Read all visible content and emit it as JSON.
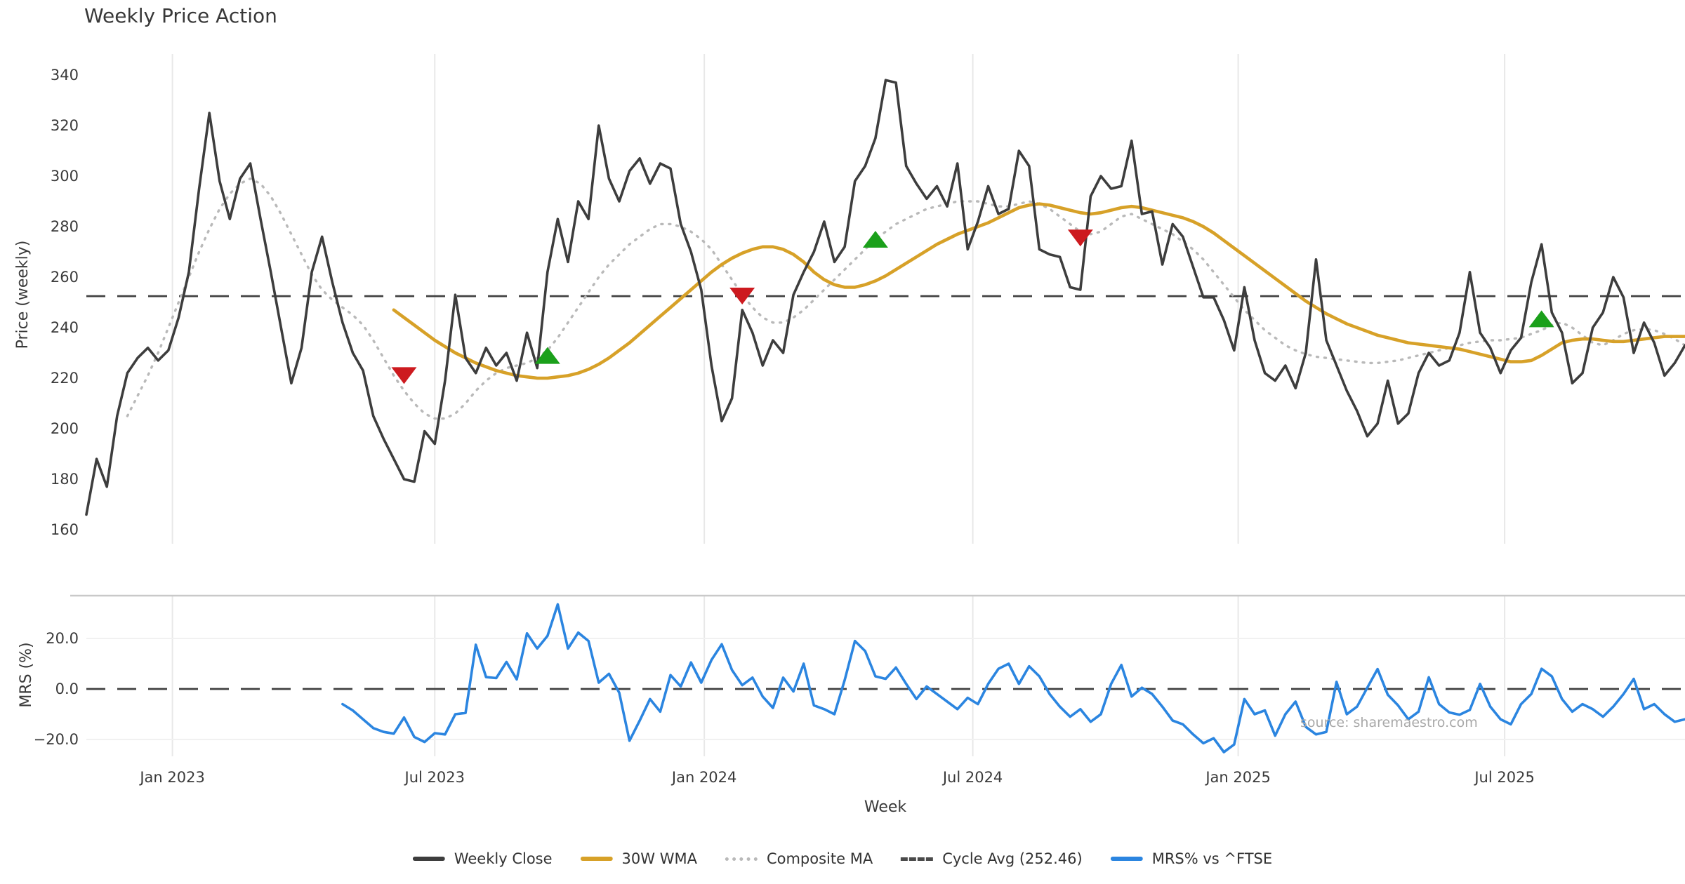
{
  "title": "Weekly Price Action",
  "watermark": "source: sharemaestro.com",
  "x_axis": {
    "label": "Week",
    "ticks": [
      {
        "week": 8.4,
        "label": "Jan 2023"
      },
      {
        "week": 34.0,
        "label": "Jul 2023"
      },
      {
        "week": 60.3,
        "label": "Jan 2024"
      },
      {
        "week": 86.5,
        "label": "Jul 2024"
      },
      {
        "week": 112.4,
        "label": "Jan 2025"
      },
      {
        "week": 138.4,
        "label": "Jul 2025"
      }
    ]
  },
  "legend": {
    "items": [
      {
        "label": "Weekly Close",
        "color": "#3d3d3d",
        "style": "solid"
      },
      {
        "label": "30W WMA",
        "color": "#d7a128",
        "style": "solid"
      },
      {
        "label": "Composite MA",
        "color": "#b9b9b9",
        "style": "dotted"
      },
      {
        "label": "Cycle Avg (252.46)",
        "color": "#4a4a4a",
        "style": "dashed"
      },
      {
        "label": "MRS% vs ^FTSE",
        "color": "#2b85e0",
        "style": "solid"
      }
    ]
  },
  "chart_data": [
    {
      "type": "line",
      "title": "Weekly Price Action",
      "ylabel": "Price (weekly)",
      "ylim": [
        152,
        349
      ],
      "grid": "vertical-only",
      "y_ticks": [
        340,
        320,
        300,
        280,
        260,
        240,
        220,
        200,
        180,
        160
      ],
      "cycle_avg": 252.46,
      "series": [
        {
          "name": "Weekly Close",
          "color": "#3d3d3d",
          "style": "solid",
          "width": 3.6,
          "start_week": 0,
          "values": [
            166,
            188,
            177,
            205,
            222,
            228,
            232,
            227,
            231,
            244,
            262,
            295,
            325,
            298,
            283,
            299,
            305,
            283,
            262,
            240,
            218,
            232,
            262,
            276,
            258,
            242,
            230,
            223,
            205,
            196,
            188,
            180,
            179,
            199,
            194,
            219,
            253,
            228,
            222,
            232,
            225,
            230,
            219,
            238,
            224,
            262,
            283,
            266,
            290,
            283,
            320,
            299,
            290,
            302,
            307,
            297,
            305,
            303,
            281,
            270,
            255,
            225,
            203,
            212,
            247,
            238,
            225,
            235,
            230,
            253,
            262,
            270,
            282,
            266,
            272,
            298,
            304,
            315,
            338,
            337,
            304,
            297,
            291,
            296,
            288,
            305,
            271,
            282,
            296,
            285,
            287,
            310,
            304,
            271,
            269,
            268,
            256,
            255,
            292,
            300,
            295,
            296,
            314,
            285,
            286,
            265,
            281,
            276,
            264,
            252,
            252,
            243,
            231,
            256,
            235,
            222,
            219,
            225,
            216,
            230,
            267,
            235,
            225,
            215,
            207,
            197,
            202,
            219,
            202,
            206,
            222,
            230,
            225,
            227,
            238,
            262,
            238,
            232,
            222,
            231,
            236,
            258,
            273,
            246,
            238,
            218,
            222,
            240,
            246,
            260,
            252,
            230,
            242,
            234,
            221,
            226,
            233
          ]
        },
        {
          "name": "30W WMA",
          "color": "#d7a128",
          "style": "solid",
          "width": 4.6,
          "start_week": 30,
          "values": [
            247,
            244,
            241,
            238,
            235,
            232.5,
            230,
            228,
            226,
            224.5,
            223,
            222,
            221,
            220.5,
            220,
            220,
            220.5,
            221,
            222,
            223.5,
            225.5,
            228,
            231,
            234,
            237.5,
            241,
            244.5,
            248,
            251.5,
            255,
            258.5,
            262,
            265,
            267.5,
            269.5,
            271,
            272,
            272,
            271,
            269,
            266,
            262,
            259,
            257,
            256,
            256,
            257,
            258.5,
            260.5,
            263,
            265.5,
            268,
            270.5,
            273,
            275,
            277,
            278.5,
            280,
            281.5,
            283.5,
            285.5,
            287.5,
            288.5,
            289,
            288.5,
            287.5,
            286.5,
            285.5,
            285,
            285.5,
            286.5,
            287.5,
            288,
            287.5,
            286.5,
            285.5,
            284.5,
            283.5,
            282,
            280,
            277.5,
            274.5,
            271.5,
            268.5,
            265.5,
            262.5,
            259.5,
            256.5,
            253.5,
            250.5,
            248,
            245.5,
            243.5,
            241.5,
            240,
            238.5,
            237,
            236,
            235,
            234,
            233.5,
            233,
            232.5,
            232,
            231.5,
            230.5,
            229.5,
            228.5,
            227.5,
            226.5,
            226.5,
            227,
            229,
            231.5,
            234,
            235,
            235.5,
            235.5,
            235,
            234.5,
            234.5,
            235,
            235.5,
            236,
            236.5,
            236.5,
            236.5
          ]
        },
        {
          "name": "Composite MA",
          "color": "#b9b9b9",
          "style": "dotted",
          "width": 3.4,
          "start_week": 4,
          "values": [
            205,
            213,
            221,
            230,
            240,
            250,
            260,
            270,
            279,
            287,
            293,
            297,
            299,
            297,
            292,
            285,
            277,
            269,
            261,
            255,
            251,
            248,
            245,
            241,
            235,
            228,
            221,
            215,
            210,
            206,
            204,
            204,
            206,
            210,
            215,
            219,
            222,
            224,
            225,
            226,
            228,
            231,
            236,
            242,
            248,
            254,
            260,
            265,
            269,
            273,
            276,
            279,
            281,
            281,
            280,
            278,
            275,
            271,
            265,
            259,
            253,
            248,
            244,
            242,
            242,
            244,
            247,
            251,
            255,
            259,
            263,
            267,
            271,
            275,
            278,
            281,
            283,
            285,
            287,
            288,
            289,
            290,
            290,
            290,
            289,
            288,
            288,
            289,
            290,
            289,
            287,
            284,
            281,
            278,
            277,
            278,
            281,
            284,
            285,
            283,
            281,
            279,
            277,
            274,
            271,
            267,
            262,
            257,
            252,
            247,
            243,
            239,
            236,
            233,
            231,
            229.5,
            228.5,
            228,
            227.5,
            227,
            226.5,
            226,
            226,
            226.5,
            227,
            228,
            229,
            230,
            231,
            232,
            233,
            234,
            234.5,
            235,
            235,
            235.5,
            236,
            237.5,
            239,
            241,
            242,
            240,
            237,
            234,
            233,
            235,
            237.5,
            239,
            239.5,
            239,
            237.5,
            235.5,
            233
          ]
        },
        {
          "name": "Cycle Avg (252.46)",
          "color": "#404040",
          "style": "dashed",
          "width": 2.8,
          "value": 252.46
        }
      ],
      "markers": [
        {
          "week": 31,
          "value": 221,
          "type": "sell"
        },
        {
          "week": 45,
          "value": 229,
          "type": "buy"
        },
        {
          "week": 64,
          "value": 252.5,
          "type": "sell"
        },
        {
          "week": 77,
          "value": 275,
          "type": "buy"
        },
        {
          "week": 97,
          "value": 275.5,
          "type": "sell"
        },
        {
          "week": 142,
          "value": 243.5,
          "type": "buy"
        }
      ],
      "marker_colors": {
        "buy": "#1ba01b",
        "sell": "#cd1a1f"
      }
    },
    {
      "type": "line",
      "ylabel": "MRS (%)",
      "ylim": [
        -28,
        37
      ],
      "zero_line": 0.0,
      "y_ticks": [
        {
          "v": 20,
          "label": "20.0"
        },
        {
          "v": 0,
          "label": "0.0"
        },
        {
          "v": -20,
          "label": "−20.0"
        }
      ],
      "series": [
        {
          "name": "MRS% vs ^FTSE",
          "color": "#2b85e0",
          "style": "solid",
          "width": 3.6,
          "start_week": 25,
          "values": [
            -6,
            -8.5,
            -12,
            -15.5,
            -17,
            -17.7,
            -11.3,
            -19,
            -21,
            -17.5,
            -18,
            -10,
            -9.5,
            17.5,
            4.7,
            4.3,
            10.7,
            3.8,
            22,
            16,
            21,
            33.5,
            16,
            22.3,
            19,
            2.5,
            6,
            -1.5,
            -20.5,
            -12.5,
            -4,
            -9,
            5.5,
            1,
            10.5,
            2.5,
            11.5,
            17.7,
            7.5,
            1.5,
            4.5,
            -3,
            -7.5,
            4.5,
            -1,
            10,
            -6.5,
            -8,
            -10,
            3.5,
            19,
            15,
            5,
            4,
            8.5,
            2,
            -4,
            1,
            -2,
            -5,
            -8,
            -3.5,
            -6,
            2,
            8,
            10,
            2,
            9,
            5,
            -2,
            -7,
            -11,
            -8,
            -13,
            -10,
            2,
            9.5,
            -3,
            0.5,
            -2,
            -7,
            -12.5,
            -14,
            -18,
            -21.5,
            -19.5,
            -25,
            -22,
            -4,
            -10,
            -8.5,
            -18.5,
            -10,
            -5,
            -15,
            -18,
            -17,
            2.8,
            -10,
            -7,
            0.5,
            7.9,
            -2.3,
            -6.5,
            -12,
            -9,
            4.6,
            -6,
            -9.3,
            -10.2,
            -8.3,
            2,
            -7,
            -12,
            -14,
            -6,
            -2,
            8,
            5,
            -4,
            -9,
            -6,
            -8,
            -11,
            -7,
            -2,
            4,
            -8,
            -6,
            -10,
            -13,
            -12
          ]
        }
      ]
    }
  ]
}
